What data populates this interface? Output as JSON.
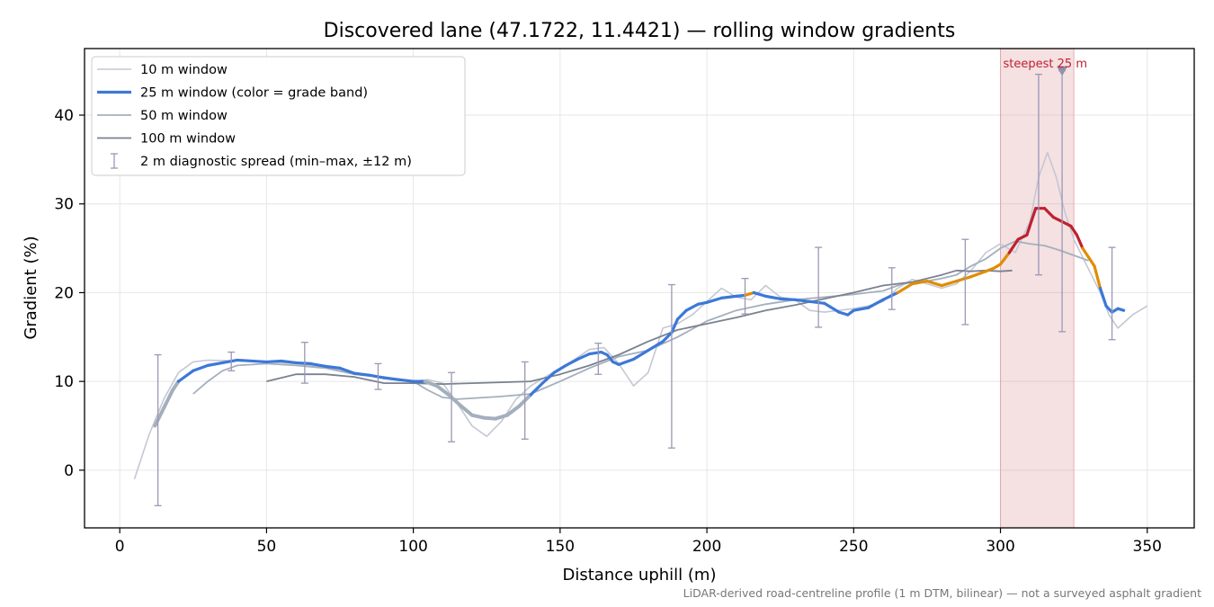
{
  "chart_data": {
    "type": "line",
    "title": "Discovered lane (47.1722, 11.4421) — rolling window gradients",
    "xlabel": "Distance uphill (m)",
    "ylabel": "Gradient (%)",
    "xlim": [
      -12,
      366
    ],
    "ylim": [
      -6.5,
      47.5
    ],
    "xticks": [
      0,
      50,
      100,
      150,
      200,
      250,
      300,
      350
    ],
    "yticks": [
      0,
      10,
      20,
      30,
      40
    ],
    "grid": true,
    "legend_position": "top-left",
    "footnote": "LiDAR-derived road-centreline profile (1 m DTM, bilinear) — not a surveyed asphalt gradient",
    "steepest_band": {
      "x0": 300,
      "x1": 325,
      "label": "steepest 25 m",
      "marker_x": 321,
      "marker_y": 45,
      "color": "#d9868d"
    },
    "grade_colors": {
      "easy": "#a4afbd",
      "moderate": "#3c78d8",
      "steep": "#e08c00",
      "extreme": "#c0202f"
    },
    "series": [
      {
        "name": "10 m window",
        "color": "#c4c8d4",
        "x": [
          5,
          10,
          15,
          20,
          25,
          30,
          40,
          50,
          55,
          60,
          70,
          80,
          90,
          100,
          105,
          110,
          115,
          120,
          125,
          130,
          135,
          140,
          145,
          150,
          155,
          160,
          165,
          170,
          175,
          180,
          185,
          190,
          195,
          200,
          205,
          210,
          215,
          220,
          225,
          230,
          235,
          240,
          245,
          250,
          255,
          260,
          265,
          270,
          275,
          280,
          285,
          290,
          295,
          300,
          305,
          310,
          313,
          316,
          319,
          322,
          325,
          328,
          331,
          334,
          337,
          340,
          345,
          350
        ],
        "y": [
          -1,
          4,
          8,
          11,
          12.2,
          12.4,
          12.3,
          12.2,
          12.1,
          12,
          11.6,
          11,
          10.5,
          10,
          10.2,
          9.8,
          7.5,
          5,
          3.8,
          5.5,
          8,
          9.5,
          10.5,
          11.5,
          12.5,
          13.6,
          13.8,
          12,
          9.5,
          11,
          16,
          16.5,
          17.5,
          19,
          20.5,
          19.5,
          19.2,
          20.8,
          19.5,
          19.2,
          18,
          17.8,
          18,
          18.2,
          18.5,
          19,
          20.5,
          21.5,
          21,
          20.5,
          21,
          22.5,
          24.5,
          25.5,
          24.5,
          28,
          33,
          35.8,
          33,
          29,
          26,
          24,
          22,
          20,
          17.5,
          16,
          17.5,
          18.5
        ]
      },
      {
        "name": "25 m window (color = grade band)",
        "color": "#3c78d8",
        "x": [
          12,
          15,
          18,
          20,
          25,
          30,
          35,
          40,
          50,
          55,
          60,
          65,
          70,
          75,
          80,
          85,
          90,
          95,
          100,
          104,
          108,
          112,
          116,
          120,
          124,
          128,
          132,
          136,
          140,
          144,
          148,
          152,
          156,
          160,
          164,
          166,
          168,
          170,
          175,
          180,
          185,
          188,
          190,
          193,
          197,
          200,
          205,
          210,
          213,
          216,
          220,
          225,
          230,
          235,
          240,
          245,
          248,
          250,
          255,
          260,
          265,
          270,
          275,
          280,
          285,
          290,
          295,
          298,
          300,
          303,
          306,
          309,
          312,
          315,
          318,
          321,
          324,
          326,
          328,
          330,
          332,
          334,
          336,
          338,
          340,
          342
        ],
        "y": [
          5,
          7,
          9,
          10,
          11.2,
          11.8,
          12.1,
          12.4,
          12.2,
          12.3,
          12.1,
          12,
          11.7,
          11.5,
          10.9,
          10.7,
          10.4,
          10.2,
          10,
          10,
          9.5,
          8.5,
          7.3,
          6.2,
          5.9,
          5.8,
          6.2,
          7.2,
          8.5,
          9.8,
          11,
          11.8,
          12.5,
          13.1,
          13.3,
          13,
          12.2,
          11.9,
          12.5,
          13.5,
          14.5,
          15.5,
          17,
          18,
          18.7,
          18.9,
          19.4,
          19.6,
          19.7,
          20,
          19.6,
          19.3,
          19.2,
          19,
          18.8,
          17.8,
          17.5,
          18,
          18.3,
          19.2,
          20,
          21,
          21.3,
          20.8,
          21.3,
          21.8,
          22.4,
          22.8,
          23.2,
          24.5,
          26,
          26.5,
          29.5,
          29.5,
          28.5,
          28,
          27.5,
          26.5,
          25,
          24,
          23,
          20.5,
          18.5,
          17.8,
          18.2,
          18
        ],
        "bands": [
          "easy",
          "easy",
          "easy",
          "moderate",
          "moderate",
          "moderate",
          "moderate",
          "moderate",
          "moderate",
          "moderate",
          "moderate",
          "moderate",
          "moderate",
          "moderate",
          "moderate",
          "moderate",
          "moderate",
          "moderate",
          "moderate",
          "easy",
          "easy",
          "easy",
          "easy",
          "easy",
          "easy",
          "easy",
          "easy",
          "easy",
          "moderate",
          "moderate",
          "moderate",
          "moderate",
          "moderate",
          "moderate",
          "moderate",
          "moderate",
          "moderate",
          "moderate",
          "moderate",
          "moderate",
          "moderate",
          "moderate",
          "moderate",
          "moderate",
          "moderate",
          "moderate",
          "moderate",
          "moderate",
          "steep",
          "moderate",
          "moderate",
          "moderate",
          "moderate",
          "moderate",
          "moderate",
          "moderate",
          "moderate",
          "moderate",
          "moderate",
          "moderate",
          "steep",
          "steep",
          "steep",
          "steep",
          "steep",
          "steep",
          "steep",
          "steep",
          "steep",
          "extreme",
          "extreme",
          "extreme",
          "extreme",
          "extreme",
          "extreme",
          "extreme",
          "extreme",
          "extreme",
          "steep",
          "steep",
          "steep",
          "moderate",
          "moderate",
          "moderate",
          "moderate",
          "moderate"
        ]
      },
      {
        "name": "50 m window",
        "color": "#a4afbd",
        "x": [
          25,
          30,
          35,
          40,
          50,
          60,
          70,
          80,
          90,
          100,
          105,
          110,
          115,
          120,
          130,
          140,
          150,
          160,
          170,
          180,
          190,
          200,
          210,
          220,
          230,
          240,
          250,
          255,
          260,
          265,
          270,
          275,
          280,
          285,
          290,
          295,
          300,
          305,
          310,
          315,
          320,
          325,
          330
        ],
        "y": [
          8.6,
          10,
          11.2,
          11.8,
          12,
          11.8,
          11.5,
          10.8,
          10.5,
          10,
          9,
          8.2,
          8,
          8.1,
          8.3,
          8.6,
          10,
          11.5,
          12.8,
          13.5,
          15,
          16.8,
          18,
          18.7,
          19.2,
          19.5,
          19.8,
          20,
          20.2,
          20.8,
          21.2,
          21.3,
          21.6,
          22,
          23,
          23.8,
          25,
          25.8,
          25.5,
          25.3,
          24.8,
          24.2,
          23.6
        ]
      },
      {
        "name": "100 m window",
        "color": "#7a8190",
        "x": [
          50,
          60,
          70,
          80,
          90,
          100,
          110,
          120,
          130,
          140,
          150,
          160,
          170,
          180,
          190,
          200,
          210,
          220,
          230,
          240,
          250,
          260,
          270,
          280,
          285,
          290,
          295,
          300,
          304
        ],
        "y": [
          10,
          10.8,
          10.8,
          10.5,
          9.8,
          9.8,
          9.7,
          9.8,
          9.9,
          10,
          10.8,
          11.8,
          13,
          14.5,
          15.8,
          16.5,
          17.2,
          18,
          18.6,
          19.3,
          20,
          20.8,
          21.2,
          22,
          22.5,
          22.4,
          22.5,
          22.4,
          22.5
        ]
      }
    ],
    "errorbars": {
      "name": "2 m diagnostic spread (min–max, ±12 m)",
      "color": "#9c97b6",
      "points": [
        {
          "x": 13,
          "lo": -4,
          "hi": 13
        },
        {
          "x": 38,
          "lo": 11.2,
          "hi": 13.3
        },
        {
          "x": 63,
          "lo": 9.8,
          "hi": 14.4
        },
        {
          "x": 88,
          "lo": 9.1,
          "hi": 12
        },
        {
          "x": 113,
          "lo": 3.2,
          "hi": 11
        },
        {
          "x": 138,
          "lo": 3.5,
          "hi": 12.2
        },
        {
          "x": 163,
          "lo": 10.8,
          "hi": 14.3
        },
        {
          "x": 188,
          "lo": 2.5,
          "hi": 20.9
        },
        {
          "x": 213,
          "lo": 17.6,
          "hi": 21.6
        },
        {
          "x": 238,
          "lo": 16.1,
          "hi": 25.1
        },
        {
          "x": 263,
          "lo": 18.1,
          "hi": 22.8
        },
        {
          "x": 288,
          "lo": 16.4,
          "hi": 26
        },
        {
          "x": 313,
          "lo": 22,
          "hi": 44.6
        },
        {
          "x": 321,
          "lo": 15.6,
          "hi": 45
        },
        {
          "x": 338,
          "lo": 14.7,
          "hi": 25.1
        }
      ]
    }
  }
}
